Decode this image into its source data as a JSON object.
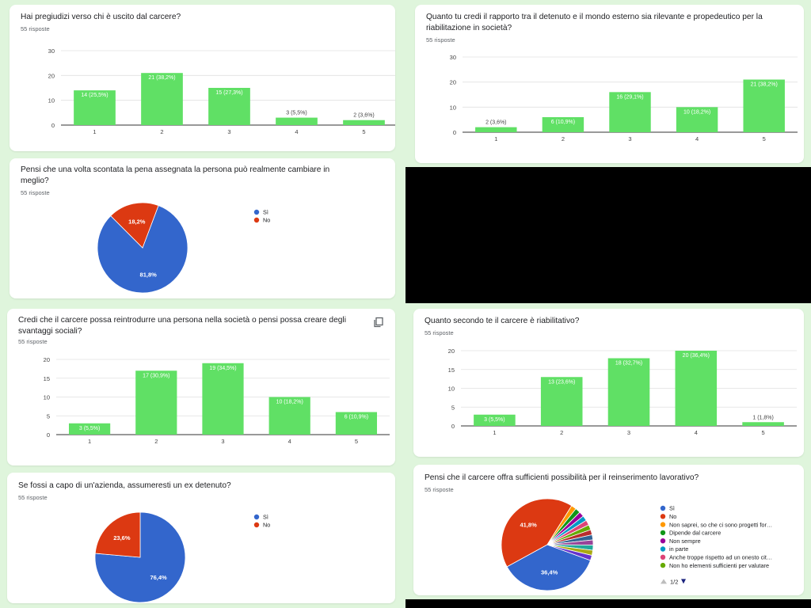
{
  "response_suffix": "55 risposte",
  "colors": {
    "bar": "#60e065",
    "blue": "#3366cc",
    "red": "#dc3912",
    "axis": "#333333",
    "grid": "#e0e0e0"
  },
  "cards": [
    {
      "id": "q1",
      "title": "Hai pregiudizi verso chi è uscito dal carcere?",
      "count": "55 risposte"
    },
    {
      "id": "q2",
      "title": "Quanto tu credi il rapporto tra il detenuto e il mondo esterno sia rilevante e propedeutico per la riabilitazione in società?",
      "count": "55 risposte"
    },
    {
      "id": "q3",
      "title": "Pensi che una volta scontata la pena assegnata la persona può realmente cambiare in meglio?",
      "count": "55 risposte"
    },
    {
      "id": "q4",
      "title": "Credi che il carcere possa reintrodurre una persona nella società o pensi possa creare degli svantaggi sociali?",
      "count": "55 risposte"
    },
    {
      "id": "q5",
      "title": "Quanto secondo te il carcere è riabilitativo?",
      "count": "55 risposte"
    },
    {
      "id": "q6",
      "title": "Se fossi a capo di un'azienda, assumeresti un ex detenuto?",
      "count": "55 risposte"
    },
    {
      "id": "q7",
      "title": "Pensi che il carcere offra sufficienti possibilità per il reinserimento lavorativo?",
      "count": "55 risposte"
    }
  ],
  "chart_data": [
    {
      "id": "q1",
      "type": "bar",
      "categories": [
        "1",
        "2",
        "3",
        "4",
        "5"
      ],
      "values": [
        14,
        21,
        15,
        3,
        2
      ],
      "labels": [
        "14 (25,5%)",
        "21 (38,2%)",
        "15 (27,3%)",
        "3 (5,5%)",
        "2 (3,6%)"
      ],
      "yticks": [
        "0",
        "10",
        "20",
        "30"
      ],
      "ylim": [
        0,
        30
      ]
    },
    {
      "id": "q2",
      "type": "bar",
      "categories": [
        "1",
        "2",
        "3",
        "4",
        "5"
      ],
      "values": [
        2,
        6,
        16,
        10,
        21
      ],
      "labels": [
        "2 (3,6%)",
        "6 (10,9%)",
        "16 (29,1%)",
        "10 (18,2%)",
        "21 (38,2%)"
      ],
      "yticks": [
        "0",
        "10",
        "20",
        "30"
      ],
      "ylim": [
        0,
        30
      ]
    },
    {
      "id": "q3",
      "type": "pie",
      "slices": [
        {
          "label": "Sì",
          "value": 81.8,
          "text": "81,8%"
        },
        {
          "label": "No",
          "value": 18.2,
          "text": "18,2%"
        }
      ]
    },
    {
      "id": "q4",
      "type": "bar",
      "categories": [
        "1",
        "2",
        "3",
        "4",
        "5"
      ],
      "values": [
        3,
        17,
        19,
        10,
        6
      ],
      "labels": [
        "3 (5,5%)",
        "17 (30,9%)",
        "19 (34,5%)",
        "10 (18,2%)",
        "6 (10,9%)"
      ],
      "yticks": [
        "0",
        "5",
        "10",
        "15",
        "20"
      ],
      "ylim": [
        0,
        20
      ]
    },
    {
      "id": "q5",
      "type": "bar",
      "categories": [
        "1",
        "2",
        "3",
        "4",
        "5"
      ],
      "values": [
        3,
        13,
        18,
        20,
        1
      ],
      "labels": [
        "3 (5,5%)",
        "13 (23,6%)",
        "18 (32,7%)",
        "20 (36,4%)",
        "1 (1,8%)"
      ],
      "yticks": [
        "0",
        "5",
        "10",
        "15",
        "20"
      ],
      "ylim": [
        0,
        20
      ]
    },
    {
      "id": "q6",
      "type": "pie",
      "slices": [
        {
          "label": "Sì",
          "value": 76.4,
          "text": "76,4%"
        },
        {
          "label": "No",
          "value": 23.6,
          "text": "23,6%"
        }
      ]
    },
    {
      "id": "q7",
      "type": "pie",
      "slices": [
        {
          "label": "Sì",
          "value": 36.4,
          "text": "36,4%"
        },
        {
          "label": "No",
          "value": 41.8,
          "text": "41,8%"
        },
        {
          "label": "Non saprei, so che ci sono progetti for…",
          "value": 1.8,
          "text": ""
        },
        {
          "label": "Dipende dal carcere",
          "value": 1.8,
          "text": ""
        },
        {
          "label": "Non sempre",
          "value": 1.8,
          "text": ""
        },
        {
          "label": "in parte",
          "value": 1.8,
          "text": ""
        },
        {
          "label": "Anche troppe rispetto ad un onesto cit…",
          "value": 1.8,
          "text": ""
        },
        {
          "label": "Non ho elementi sufficienti per valutare",
          "value": 1.8,
          "text": ""
        },
        {
          "label": "",
          "value": 1.8,
          "text": ""
        },
        {
          "label": "",
          "value": 1.8,
          "text": ""
        },
        {
          "label": "",
          "value": 1.8,
          "text": ""
        },
        {
          "label": "",
          "value": 1.8,
          "text": ""
        },
        {
          "label": "",
          "value": 1.8,
          "text": ""
        },
        {
          "label": "",
          "value": 1.8,
          "text": ""
        }
      ],
      "legend_colors": [
        "#3366cc",
        "#dc3912",
        "#ff9900",
        "#109618",
        "#990099",
        "#0099c6",
        "#dd4477",
        "#66aa00",
        "#b82e2e",
        "#316395",
        "#994499",
        "#22aa99",
        "#aaaa11",
        "#6633cc"
      ],
      "pagination": "1/2"
    }
  ]
}
